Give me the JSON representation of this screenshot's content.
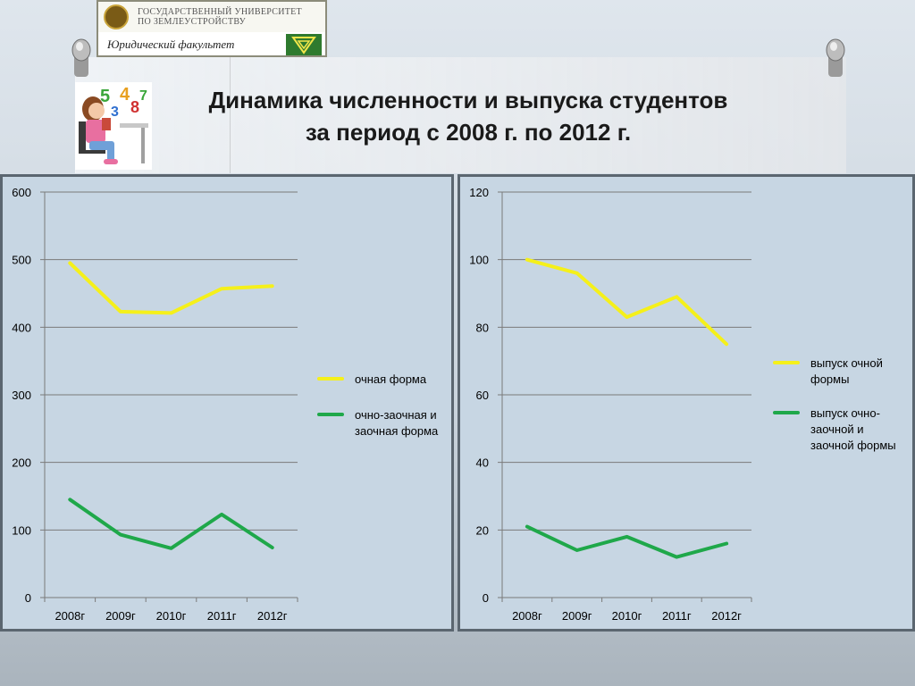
{
  "banner": {
    "university": "ГОСУДАРСТВЕННЫЙ УНИВЕРСИТЕТ\nПО ЗЕМЛЕУСТРОЙСТВУ",
    "faculty": "Юридический факультет"
  },
  "title": {
    "line1": "Динамика численности и выпуска студентов",
    "line2": "за период с 2008 г. по 2012 г."
  },
  "colors": {
    "yellow": "#f5f01a",
    "green": "#1fa84a"
  },
  "chart_data": [
    {
      "type": "line",
      "categories": [
        "2008г",
        "2009г",
        "2010г",
        "2011г",
        "2012г"
      ],
      "ylim": [
        0,
        600
      ],
      "yticks": [
        "0",
        "100",
        "200",
        "300",
        "400",
        "500",
        "600"
      ],
      "grid": true,
      "legend_position": "right",
      "series": [
        {
          "name": "очная форма",
          "color": "#f5f01a",
          "values": [
            495,
            423,
            421,
            457,
            461
          ]
        },
        {
          "name": "очно-заочная и\nзаочная форма",
          "color": "#1fa84a",
          "values": [
            145,
            93,
            73,
            123,
            74
          ]
        }
      ]
    },
    {
      "type": "line",
      "categories": [
        "2008г",
        "2009г",
        "2010г",
        "2011г",
        "2012г"
      ],
      "ylim": [
        0,
        120
      ],
      "yticks": [
        "0",
        "20",
        "40",
        "60",
        "80",
        "100",
        "120"
      ],
      "grid": true,
      "legend_position": "right",
      "series": [
        {
          "name": "выпуск очной\nформы",
          "color": "#f5f01a",
          "values": [
            100,
            96,
            83,
            89,
            75
          ]
        },
        {
          "name": "выпуск очно-\nзаочной и\nзаочной формы",
          "color": "#1fa84a",
          "values": [
            21,
            14,
            18,
            12,
            16
          ]
        }
      ]
    }
  ]
}
